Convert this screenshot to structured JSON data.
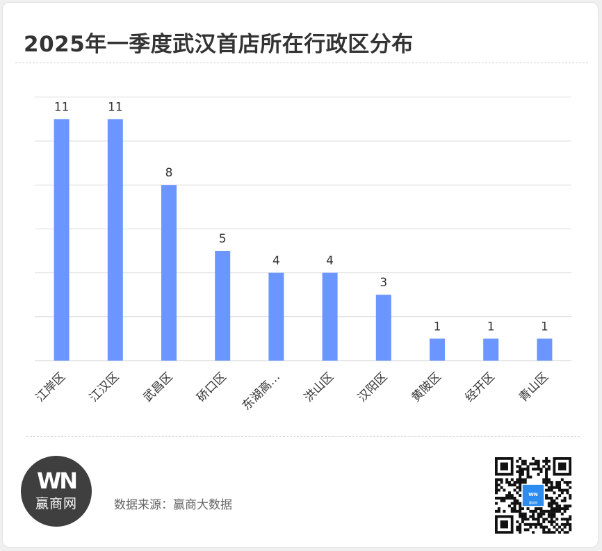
{
  "header": {
    "title": "2025年一季度武汉首店所在行政区分布"
  },
  "footer": {
    "logo_mark": "WN",
    "logo_text": "赢商网",
    "source_text": "数据来源：赢商大数据",
    "qr_center_label": "赢商网"
  },
  "colors": {
    "bar": "#6b95ff",
    "grid": "#dcdcdc",
    "text": "#333333"
  },
  "chart_data": {
    "type": "bar",
    "title": "2025年一季度武汉首店所在行政区分布",
    "categories": [
      "江岸区",
      "江汉区",
      "武昌区",
      "硚口区",
      "东湖高…",
      "洪山区",
      "汉阳区",
      "黄陂区",
      "经开区",
      "青山区"
    ],
    "values": [
      11,
      11,
      8,
      5,
      4,
      4,
      3,
      1,
      1,
      1
    ],
    "xlabel": "",
    "ylabel": "",
    "ylim": [
      0,
      12
    ],
    "ytick_step": 2,
    "y_tick_labels_visible": false,
    "data_labels": true,
    "grid": true,
    "legend": "none"
  }
}
